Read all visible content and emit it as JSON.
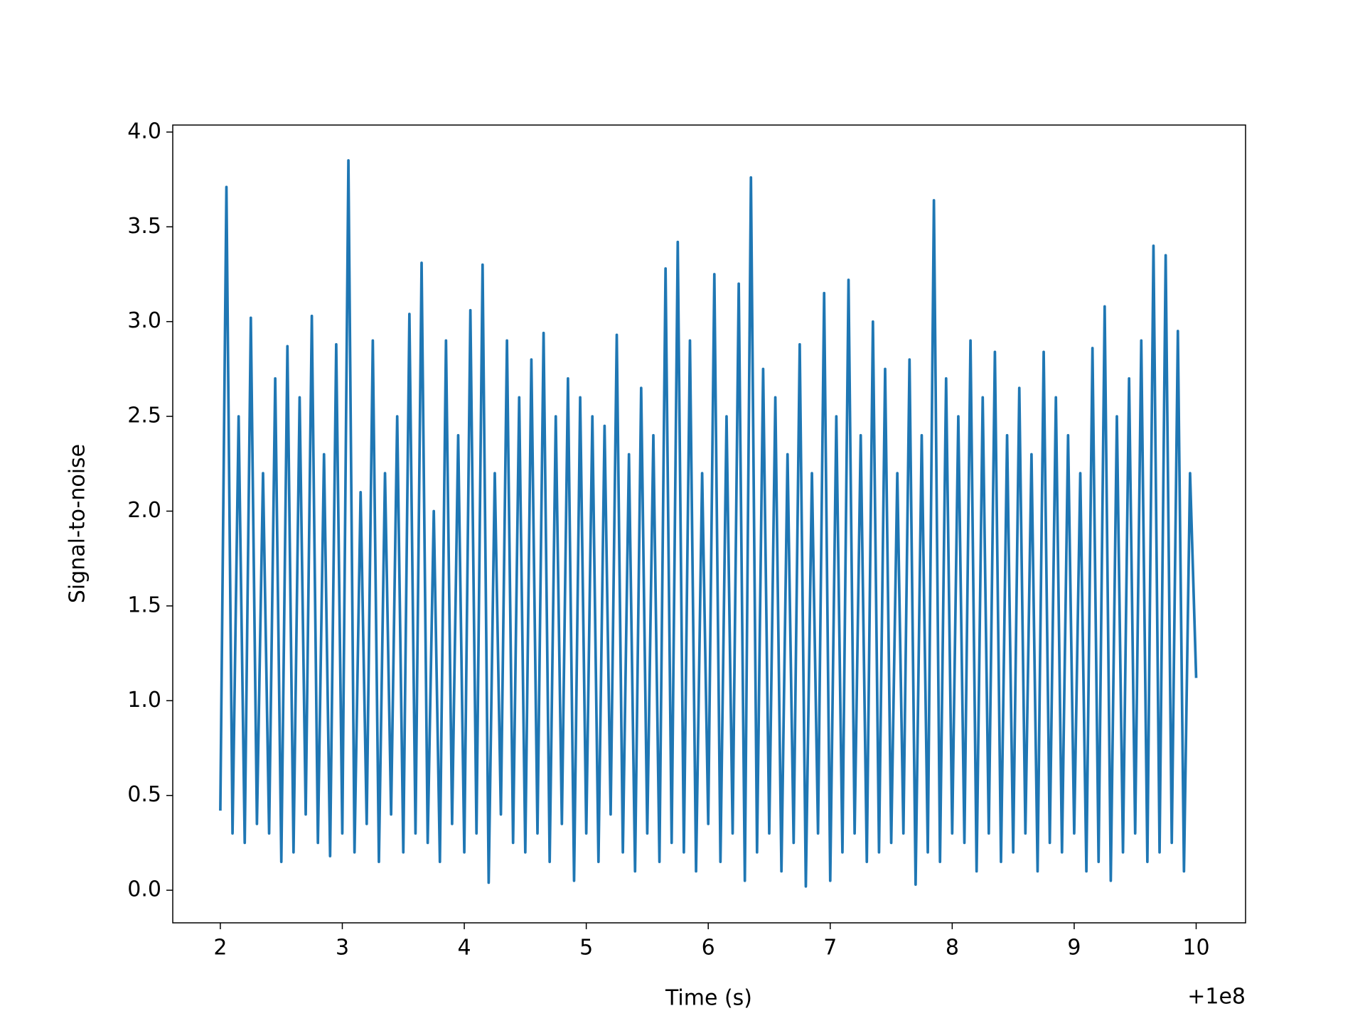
{
  "chart_data": {
    "type": "line",
    "x_label": "Time (s)",
    "y_label": "Signal-to-noise",
    "x_offset_label": "+1e8",
    "x": [
      2.0,
      2.05,
      2.1,
      2.15,
      2.2,
      2.25,
      2.3,
      2.35,
      2.4,
      2.45,
      2.5,
      2.55,
      2.6,
      2.65,
      2.7,
      2.75,
      2.8,
      2.85,
      2.9,
      2.95,
      3.0,
      3.05,
      3.1,
      3.15,
      3.2,
      3.25,
      3.3,
      3.35,
      3.4,
      3.45,
      3.5,
      3.55,
      3.6,
      3.65,
      3.7,
      3.75,
      3.8,
      3.85,
      3.9,
      3.95,
      4.0,
      4.05,
      4.1,
      4.15,
      4.2,
      4.25,
      4.3,
      4.35,
      4.4,
      4.45,
      4.5,
      4.55,
      4.6,
      4.65,
      4.7,
      4.75,
      4.8,
      4.85,
      4.9,
      4.95,
      5.0,
      5.05,
      5.1,
      5.15,
      5.2,
      5.25,
      5.3,
      5.35,
      5.4,
      5.45,
      5.5,
      5.55,
      5.6,
      5.65,
      5.7,
      5.75,
      5.8,
      5.85,
      5.9,
      5.95,
      6.0,
      6.05,
      6.1,
      6.15,
      6.2,
      6.25,
      6.3,
      6.35,
      6.4,
      6.45,
      6.5,
      6.55,
      6.6,
      6.65,
      6.7,
      6.75,
      6.8,
      6.85,
      6.9,
      6.95,
      7.0,
      7.05,
      7.1,
      7.15,
      7.2,
      7.25,
      7.3,
      7.35,
      7.4,
      7.45,
      7.5,
      7.55,
      7.6,
      7.65,
      7.7,
      7.75,
      7.8,
      7.85,
      7.9,
      7.95,
      8.0,
      8.05,
      8.1,
      8.15,
      8.2,
      8.25,
      8.3,
      8.35,
      8.4,
      8.45,
      8.5,
      8.55,
      8.6,
      8.65,
      8.7,
      8.75,
      8.8,
      8.85,
      8.9,
      8.95,
      9.0,
      9.05,
      9.1,
      9.15,
      9.2,
      9.25,
      9.3,
      9.35,
      9.4,
      9.45,
      9.5,
      9.55,
      9.6,
      9.65,
      9.7,
      9.75,
      9.8,
      9.85,
      9.9,
      9.95,
      10.0
    ],
    "series": [
      {
        "color": "#1f77b4",
        "values": [
          0.42,
          3.71,
          0.3,
          2.5,
          0.25,
          3.02,
          0.35,
          2.2,
          0.3,
          2.7,
          0.15,
          2.87,
          0.2,
          2.6,
          0.4,
          3.03,
          0.25,
          2.3,
          0.18,
          2.88,
          0.3,
          3.85,
          0.2,
          2.1,
          0.35,
          2.9,
          0.15,
          2.2,
          0.4,
          2.5,
          0.2,
          3.04,
          0.3,
          3.31,
          0.25,
          2.0,
          0.15,
          2.9,
          0.35,
          2.4,
          0.2,
          3.06,
          0.3,
          3.3,
          0.04,
          2.2,
          0.4,
          2.9,
          0.25,
          2.6,
          0.2,
          2.8,
          0.3,
          2.94,
          0.15,
          2.5,
          0.35,
          2.7,
          0.05,
          2.6,
          0.3,
          2.5,
          0.15,
          2.45,
          0.4,
          2.93,
          0.2,
          2.3,
          0.1,
          2.65,
          0.3,
          2.4,
          0.15,
          3.28,
          0.25,
          3.42,
          0.2,
          2.9,
          0.1,
          2.2,
          0.35,
          3.25,
          0.15,
          2.5,
          0.3,
          3.2,
          0.05,
          3.76,
          0.2,
          2.75,
          0.3,
          2.6,
          0.1,
          2.3,
          0.25,
          2.88,
          0.02,
          2.2,
          0.3,
          3.15,
          0.05,
          2.5,
          0.2,
          3.22,
          0.3,
          2.4,
          0.15,
          3.0,
          0.2,
          2.75,
          0.25,
          2.2,
          0.3,
          2.8,
          0.03,
          2.4,
          0.2,
          3.64,
          0.15,
          2.7,
          0.3,
          2.5,
          0.25,
          2.9,
          0.1,
          2.6,
          0.3,
          2.84,
          0.15,
          2.4,
          0.2,
          2.65,
          0.3,
          2.3,
          0.1,
          2.84,
          0.25,
          2.6,
          0.2,
          2.4,
          0.3,
          2.2,
          0.1,
          2.86,
          0.15,
          3.08,
          0.05,
          2.5,
          0.2,
          2.7,
          0.3,
          2.9,
          0.15,
          3.4,
          0.2,
          3.35,
          0.25,
          2.95,
          0.1,
          2.2,
          1.12
        ]
      }
    ],
    "xlim": [
      1.61,
      10.405
    ],
    "ylim": [
      -0.172,
      4.037
    ],
    "xticks": [
      2,
      3,
      4,
      5,
      6,
      7,
      8,
      9,
      10
    ],
    "yticks": [
      {
        "value": 0,
        "label": "0.0"
      },
      0.5,
      {
        "value": 1,
        "label": "1.0"
      },
      1.5,
      {
        "value": 2,
        "label": "2.0"
      },
      2.5,
      {
        "value": 3,
        "label": "3.0"
      },
      3.5,
      {
        "value": 4,
        "label": "4.0"
      }
    ]
  }
}
